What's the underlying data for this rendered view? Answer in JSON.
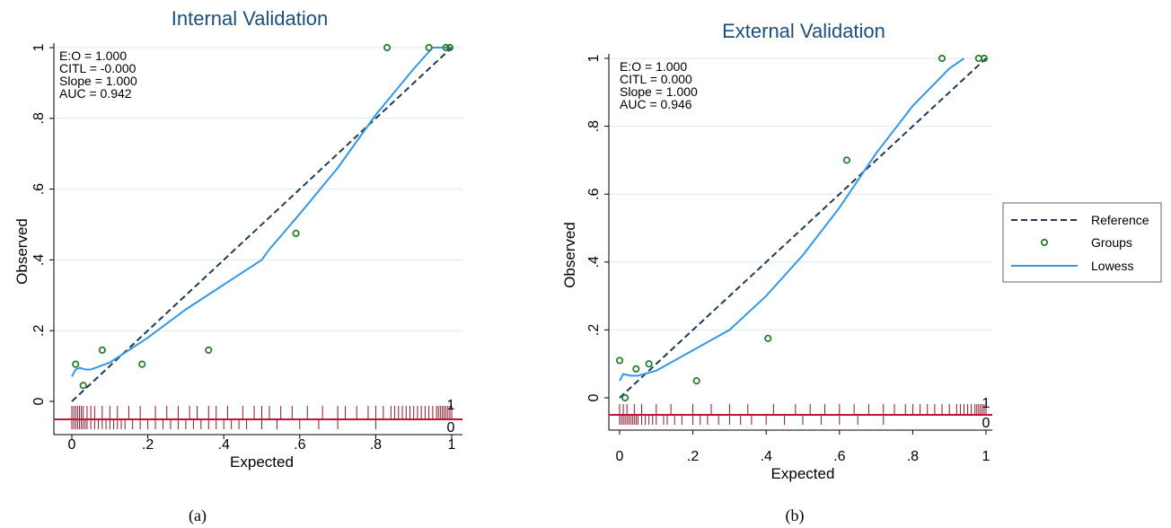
{
  "legend": {
    "entries": [
      {
        "label": "Reference",
        "kind": "dash",
        "color": "#1f3b57"
      },
      {
        "label": "Groups",
        "kind": "marker",
        "color": "#2e7d32"
      },
      {
        "label": "Lowess",
        "kind": "line",
        "color": "#3399e6"
      }
    ]
  },
  "colors": {
    "reference": "#1f3b57",
    "lowess": "#3399e6",
    "groups": "#2e7d32",
    "rug": "#8b1a2b",
    "grid": "#dde9e9",
    "title": "#1f4e79"
  },
  "chart_data": [
    {
      "type": "scatter",
      "title": "Internal Validation",
      "caption": "(a)",
      "xlabel": "Expected",
      "ylabel": "Observed",
      "xlim": [
        0,
        1
      ],
      "ylim": [
        0,
        1
      ],
      "xticks": [
        0,
        0.2,
        0.4,
        0.6,
        0.8,
        1
      ],
      "xtick_labels": [
        "0",
        ".2",
        ".4",
        ".6",
        ".8",
        "1"
      ],
      "yticks": [
        0,
        0.2,
        0.4,
        0.6,
        0.8,
        1
      ],
      "ytick_labels": [
        "0",
        ".2",
        ".4",
        ".6",
        ".8",
        "1"
      ],
      "grid": true,
      "stats": [
        "E:O = 1.000",
        "CITL = -0.000",
        "Slope = 1.000",
        "AUC = 0.942"
      ],
      "rug_labels": [
        "1",
        "0"
      ],
      "series": [
        {
          "name": "Reference",
          "kind": "line",
          "points": [
            [
              0,
              0
            ],
            [
              1,
              1
            ]
          ]
        },
        {
          "name": "Groups",
          "kind": "scatter",
          "points": [
            [
              0.01,
              0.105
            ],
            [
              0.03,
              0.045
            ],
            [
              0.08,
              0.145
            ],
            [
              0.185,
              0.105
            ],
            [
              0.36,
              0.145
            ],
            [
              0.59,
              0.475
            ],
            [
              0.83,
              1.0
            ],
            [
              0.94,
              1.0
            ],
            [
              0.985,
              1.0
            ],
            [
              0.995,
              1.0
            ]
          ]
        },
        {
          "name": "Lowess",
          "kind": "line",
          "points": [
            [
              0.0,
              0.07
            ],
            [
              0.01,
              0.09
            ],
            [
              0.02,
              0.095
            ],
            [
              0.035,
              0.09
            ],
            [
              0.05,
              0.09
            ],
            [
              0.1,
              0.11
            ],
            [
              0.2,
              0.18
            ],
            [
              0.3,
              0.26
            ],
            [
              0.4,
              0.33
            ],
            [
              0.5,
              0.4
            ],
            [
              0.52,
              0.43
            ],
            [
              0.6,
              0.53
            ],
            [
              0.7,
              0.66
            ],
            [
              0.8,
              0.81
            ],
            [
              0.9,
              0.94
            ],
            [
              0.95,
              1.0
            ],
            [
              1.0,
              1.0
            ]
          ]
        }
      ],
      "rug_events": [
        0.0,
        0.005,
        0.01,
        0.015,
        0.02,
        0.025,
        0.03,
        0.04,
        0.05,
        0.06,
        0.08,
        0.1,
        0.12,
        0.15,
        0.18,
        0.22,
        0.25,
        0.28,
        0.31,
        0.33,
        0.36,
        0.38,
        0.41,
        0.45,
        0.48,
        0.5,
        0.52,
        0.55,
        0.58,
        0.62,
        0.66,
        0.7,
        0.72,
        0.75,
        0.78,
        0.8,
        0.82,
        0.84,
        0.85,
        0.86,
        0.87,
        0.88,
        0.89,
        0.9,
        0.91,
        0.92,
        0.93,
        0.94,
        0.95,
        0.96,
        0.965,
        0.97,
        0.975,
        0.98,
        0.985,
        0.99,
        0.995,
        1.0
      ],
      "rug_nonevents": [
        0.0,
        0.005,
        0.01,
        0.015,
        0.02,
        0.025,
        0.03,
        0.035,
        0.04,
        0.05,
        0.06,
        0.07,
        0.08,
        0.09,
        0.1,
        0.11,
        0.12,
        0.13,
        0.14,
        0.16,
        0.18,
        0.2,
        0.22,
        0.24,
        0.26,
        0.28,
        0.3,
        0.32,
        0.34,
        0.36,
        0.38,
        0.4,
        0.42,
        0.44,
        0.46,
        0.5,
        0.54,
        0.6,
        0.65,
        0.7,
        0.8
      ]
    },
    {
      "type": "scatter",
      "title": "External Validation",
      "caption": "(b)",
      "xlabel": "Expected",
      "ylabel": "Observed",
      "xlim": [
        0,
        1
      ],
      "ylim": [
        0,
        1
      ],
      "xticks": [
        0,
        0.2,
        0.4,
        0.6,
        0.8,
        1
      ],
      "xtick_labels": [
        "0",
        ".2",
        ".4",
        ".6",
        ".8",
        "1"
      ],
      "yticks": [
        0,
        0.2,
        0.4,
        0.6,
        0.8,
        1
      ],
      "ytick_labels": [
        "0",
        ".2",
        ".4",
        ".6",
        ".8",
        "1"
      ],
      "grid": true,
      "stats": [
        "E:O = 1.000",
        "CITL = 0.000",
        "Slope = 1.000",
        "AUC = 0.946"
      ],
      "rug_labels": [
        "1",
        "0"
      ],
      "series": [
        {
          "name": "Reference",
          "kind": "line",
          "points": [
            [
              0,
              0
            ],
            [
              1,
              1
            ]
          ]
        },
        {
          "name": "Groups",
          "kind": "scatter",
          "points": [
            [
              0.0,
              0.11
            ],
            [
              0.015,
              0.0
            ],
            [
              0.045,
              0.085
            ],
            [
              0.08,
              0.1
            ],
            [
              0.21,
              0.05
            ],
            [
              0.405,
              0.175
            ],
            [
              0.62,
              0.7
            ],
            [
              0.88,
              1.0
            ],
            [
              0.98,
              1.0
            ],
            [
              0.995,
              1.0
            ]
          ]
        },
        {
          "name": "Lowess",
          "kind": "line",
          "points": [
            [
              0.0,
              0.05
            ],
            [
              0.01,
              0.07
            ],
            [
              0.03,
              0.065
            ],
            [
              0.05,
              0.065
            ],
            [
              0.1,
              0.08
            ],
            [
              0.2,
              0.14
            ],
            [
              0.3,
              0.2
            ],
            [
              0.4,
              0.3
            ],
            [
              0.5,
              0.42
            ],
            [
              0.6,
              0.56
            ],
            [
              0.7,
              0.72
            ],
            [
              0.8,
              0.86
            ],
            [
              0.9,
              0.97
            ],
            [
              0.94,
              1.0
            ]
          ]
        }
      ],
      "rug_events": [
        0.0,
        0.01,
        0.02,
        0.04,
        0.06,
        0.1,
        0.14,
        0.2,
        0.25,
        0.3,
        0.35,
        0.42,
        0.48,
        0.52,
        0.56,
        0.6,
        0.64,
        0.68,
        0.72,
        0.75,
        0.78,
        0.8,
        0.82,
        0.84,
        0.86,
        0.88,
        0.9,
        0.92,
        0.93,
        0.94,
        0.95,
        0.96,
        0.97,
        0.975,
        0.98,
        0.985,
        0.99,
        0.995,
        1.0
      ],
      "rug_nonevents": [
        0.0,
        0.005,
        0.01,
        0.015,
        0.02,
        0.025,
        0.03,
        0.035,
        0.04,
        0.045,
        0.05,
        0.06,
        0.07,
        0.08,
        0.09,
        0.1,
        0.12,
        0.13,
        0.15,
        0.17,
        0.2,
        0.22,
        0.24,
        0.27,
        0.3,
        0.33,
        0.36,
        0.4,
        0.45,
        0.5,
        0.55,
        0.6,
        0.65,
        0.72
      ]
    }
  ]
}
